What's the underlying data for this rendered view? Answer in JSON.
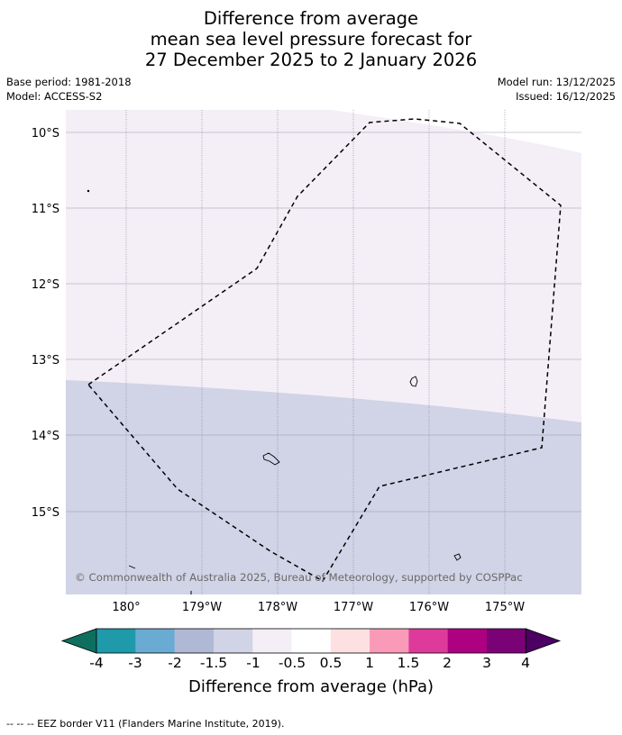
{
  "title": {
    "line1": "Difference from average",
    "line2": "mean sea level pressure forecast for",
    "line3": "27 December 2025 to 2 January 2026"
  },
  "meta": {
    "base_period": "Base period: 1981-2018",
    "model": "Model: ACCESS-S2",
    "model_run": "Model run: 13/12/2025",
    "issued": "Issued: 16/12/2025"
  },
  "map": {
    "lat_ticks": [
      "10°S",
      "11°S",
      "12°S",
      "13°S",
      "14°S",
      "15°S"
    ],
    "lon_ticks": [
      "180°",
      "179°W",
      "178°W",
      "177°W",
      "176°W",
      "175°W"
    ],
    "copyright": "© Commonwealth of Australia 2025, Bureau of Meteorology, supported by COSPPac",
    "colors": {
      "anomaly_-1_to_-0.5": "#f4eef6",
      "anomaly_-1.5_to_-1": "#d1d3e6"
    }
  },
  "colorbar": {
    "labels": [
      "-4",
      "-3",
      "-2",
      "-1.5",
      "-1",
      "-0.5",
      "0.5",
      "1",
      "1.5",
      "2",
      "3",
      "4"
    ],
    "colors": [
      "#0f6f5f",
      "#1f9aaa",
      "#69abd3",
      "#afb9d6",
      "#d1d3e6",
      "#f4eef6",
      "#ffffff",
      "#fde0e1",
      "#f89ab8",
      "#de3a9c",
      "#ad0182",
      "#7b0177",
      "#4b0062"
    ],
    "title": "Difference from average (hPa)"
  },
  "footer": {
    "eez_note": "--  --  -- EEZ border V11 (Flanders Marine Institute, 2019)."
  }
}
